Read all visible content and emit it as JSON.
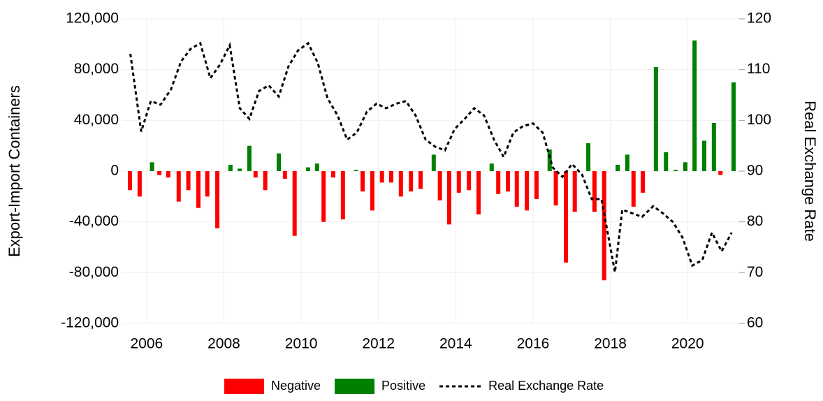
{
  "chart_data": {
    "type": "bar",
    "x": [
      2005.57,
      2005.82,
      2006.14,
      2006.33,
      2006.56,
      2006.83,
      2007.08,
      2007.34,
      2007.57,
      2007.83,
      2008.17,
      2008.41,
      2008.66,
      2008.82,
      2009.07,
      2009.42,
      2009.58,
      2009.83,
      2010.18,
      2010.41,
      2010.58,
      2010.83,
      2011.08,
      2011.42,
      2011.59,
      2011.84,
      2012.09,
      2012.33,
      2012.58,
      2012.84,
      2013.09,
      2013.43,
      2013.59,
      2013.83,
      2014.08,
      2014.34,
      2014.59,
      2014.93,
      2015.1,
      2015.35,
      2015.58,
      2015.84,
      2016.09,
      2016.43,
      2016.59,
      2016.85,
      2017.08,
      2017.43,
      2017.59,
      2017.84,
      2018.19,
      2018.44,
      2018.6,
      2018.84,
      2019.18,
      2019.44,
      2019.69,
      2019.94,
      2020.18,
      2020.43,
      2020.68,
      2020.85,
      2021.19
    ],
    "series": [
      {
        "name": "Negative",
        "color": "#ff0000",
        "values": [
          -15000,
          -20000,
          null,
          -3000,
          -5000,
          -24000,
          -15000,
          -29000,
          -20000,
          -45000,
          null,
          null,
          null,
          -5000,
          -15000,
          null,
          -6000,
          -51000,
          null,
          null,
          -40000,
          -5000,
          -38000,
          null,
          -16000,
          -31000,
          -9000,
          -9000,
          -20000,
          -16000,
          -14000,
          null,
          -23000,
          -42000,
          -17000,
          -15000,
          -34000,
          null,
          -18000,
          -16000,
          -28000,
          -31000,
          -22000,
          null,
          -27000,
          -72000,
          -32000,
          null,
          -32000,
          -86000,
          null,
          null,
          -28000,
          -17000,
          null,
          null,
          null,
          null,
          null,
          null,
          null,
          -3000,
          null
        ]
      },
      {
        "name": "Positive",
        "color": "#008000",
        "values": [
          null,
          null,
          7000,
          null,
          null,
          null,
          null,
          null,
          null,
          null,
          5000,
          2000,
          20000,
          null,
          null,
          14000,
          null,
          null,
          3000,
          6000,
          null,
          null,
          null,
          1000,
          null,
          null,
          null,
          null,
          null,
          null,
          null,
          13000,
          null,
          null,
          null,
          null,
          null,
          6000,
          null,
          null,
          null,
          null,
          null,
          17000,
          null,
          null,
          null,
          22000,
          null,
          null,
          5000,
          13000,
          null,
          null,
          82000,
          15000,
          1000,
          7000,
          103000,
          24000,
          38000,
          null,
          70000
        ]
      },
      {
        "name": "Real Exchange Rate",
        "type": "line",
        "axis": "y2",
        "color": "#000000",
        "line_style": "dashed",
        "x": [
          2005.58,
          2005.86,
          2006.11,
          2006.36,
          2006.63,
          2006.89,
          2007.14,
          2007.39,
          2007.65,
          2007.9,
          2008.15,
          2008.41,
          2008.66,
          2008.91,
          2009.16,
          2009.42,
          2009.67,
          2009.92,
          2010.18,
          2010.43,
          2010.68,
          2010.94,
          2011.19,
          2011.44,
          2011.7,
          2011.95,
          2012.2,
          2012.46,
          2012.71,
          2012.96,
          2013.22,
          2013.47,
          2013.72,
          2013.97,
          2014.23,
          2014.48,
          2014.73,
          2014.99,
          2015.24,
          2015.49,
          2015.75,
          2016.0,
          2016.25,
          2016.51,
          2016.76,
          2017.01,
          2017.27,
          2017.52,
          2017.77,
          2018.12,
          2018.31,
          2018.57,
          2018.82,
          2019.11,
          2019.36,
          2019.62,
          2019.87,
          2020.12,
          2020.38,
          2020.63,
          2020.88,
          2021.14
        ],
        "values": [
          113.1,
          97.8,
          103.8,
          103.1,
          106.1,
          111.6,
          114.1,
          115.2,
          108.3,
          111,
          114.8,
          102.4,
          100.3,
          105.8,
          106.9,
          104.7,
          110.6,
          113.8,
          115.2,
          111.3,
          104.4,
          101,
          96.2,
          97.6,
          101.7,
          103.3,
          102.4,
          103.3,
          103.8,
          101,
          96.2,
          94.8,
          94.1,
          98.3,
          100.3,
          102.4,
          101,
          96.2,
          92.8,
          97.6,
          98.9,
          99.4,
          97.6,
          90.7,
          88.9,
          91.4,
          89.3,
          84.5,
          84.5,
          70.1,
          82.4,
          81.7,
          81,
          83.1,
          81.7,
          80,
          76.9,
          71.4,
          72.5,
          77.9,
          74.2,
          77.9
        ]
      }
    ],
    "y_label": "Export-Import Containers",
    "y2_label": "Real Exchange Rate",
    "xlim": [
      2005.37,
      2021.37
    ],
    "xticks": [
      2006,
      2008,
      2010,
      2012,
      2014,
      2016,
      2018,
      2020
    ],
    "ylim": [
      -120000,
      120000
    ],
    "yticks": [
      {
        "value": -120000,
        "label": "-120,000"
      },
      {
        "value": -80000,
        "label": "-80,000"
      },
      {
        "value": -40000,
        "label": "-40,000"
      },
      0,
      {
        "value": 40000,
        "label": "40,000"
      },
      {
        "value": 80000,
        "label": "80,000"
      },
      {
        "value": 120000,
        "label": "120,000"
      }
    ],
    "y2lim": [
      60,
      120
    ],
    "y2ticks": [
      60,
      70,
      80,
      90,
      100,
      110,
      120
    ],
    "grid": true,
    "legend": "bottom"
  }
}
